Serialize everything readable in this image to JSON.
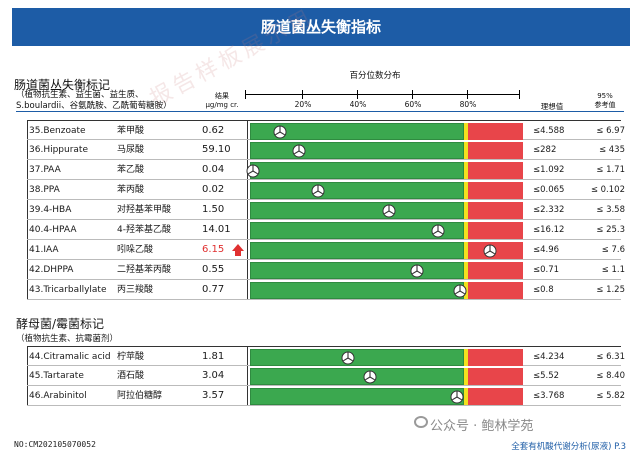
{
  "header": {
    "title": "肠道菌丛失衡指标"
  },
  "section1": {
    "title": "肠道菌丛失衡标记",
    "sub1": "（植物抗生素、益生菌、益生质、",
    "sub2": "S.boulardii、谷氨酰胺、乙酰葡萄糖胺）"
  },
  "columns": {
    "result": "结果",
    "unit": "μg/mg cr.",
    "percentile": "百分位数分布",
    "ideal": "理想值",
    "ref_pct": "95%",
    "ref": "参考值"
  },
  "scale_ticks": [
    "20%",
    "40%",
    "60%",
    "80%"
  ],
  "rows1": [
    {
      "name": "35.Benzoate",
      "cn": "苯甲酸",
      "value": "0.62",
      "pct": 11,
      "ideal": "≤4.588",
      "ref": "≤ 6.97",
      "high": false
    },
    {
      "name": "36.Hippurate",
      "cn": "马尿酸",
      "value": "59.10",
      "pct": 18,
      "ideal": "≤282",
      "ref": "≤ 435",
      "high": false
    },
    {
      "name": "37.PAA",
      "cn": "苯乙酸",
      "value": "0.04",
      "pct": 1,
      "ideal": "≤1.092",
      "ref": "≤ 1.71",
      "high": false
    },
    {
      "name": "38.PPA",
      "cn": "苯丙酸",
      "value": "0.02",
      "pct": 25,
      "ideal": "≤0.065",
      "ref": "≤ 0.102",
      "high": false
    },
    {
      "name": "39.4-HBA",
      "cn": "对羟基苯甲酸",
      "value": "1.50",
      "pct": 51,
      "ideal": "≤2.332",
      "ref": "≤ 3.58",
      "high": false
    },
    {
      "name": "40.4-HPAA",
      "cn": "4-羟苯基乙酸",
      "value": "14.01",
      "pct": 69,
      "ideal": "≤16.12",
      "ref": "≤ 25.3",
      "high": false
    },
    {
      "name": "41.IAA",
      "cn": "吲哚乙酸",
      "value": "6.15",
      "pct": 88,
      "ideal": "≤4.96",
      "ref": "≤ 7.6",
      "high": true
    },
    {
      "name": "42.DHPPA",
      "cn": "二羟基苯丙酸",
      "value": "0.55",
      "pct": 61,
      "ideal": "≤0.71",
      "ref": "≤ 1.1",
      "high": false
    },
    {
      "name": "43.Tricarballylate",
      "cn": "丙三羧酸",
      "value": "0.77",
      "pct": 77,
      "ideal": "≤0.8",
      "ref": "≤ 1.25",
      "high": false
    }
  ],
  "section2": {
    "title": "酵母菌/霉菌标记",
    "sub": "（植物抗生素、抗霉菌剂）"
  },
  "rows2": [
    {
      "name": "44.Citramalic acid",
      "cn": "柠苹酸",
      "value": "1.81",
      "pct": 36,
      "ideal": "≤4.234",
      "ref": "≤ 6.31",
      "high": false
    },
    {
      "name": "45.Tartarate",
      "cn": "酒石酸",
      "value": "3.04",
      "pct": 44,
      "ideal": "≤5.52",
      "ref": "≤ 8.40",
      "high": false
    },
    {
      "name": "46.Arabinitol",
      "cn": "阿拉伯糖醇",
      "value": "3.57",
      "pct": 76,
      "ideal": "≤3.768",
      "ref": "≤ 5.82",
      "high": false
    }
  ],
  "footer": {
    "report_no": "NO:CM202105070052",
    "page": "全套有机酸代谢分析(尿液) P.3"
  },
  "watermark": {
    "text": "公众号 · 鲍林学苑",
    "icon": "wechat-icon"
  },
  "stamp": "报告样板展示用",
  "colors": {
    "header": "#1d5ca6",
    "green": "#3ba84f",
    "yellow": "#f2e11f",
    "red": "#e8454a",
    "high_value": "#e03030"
  }
}
